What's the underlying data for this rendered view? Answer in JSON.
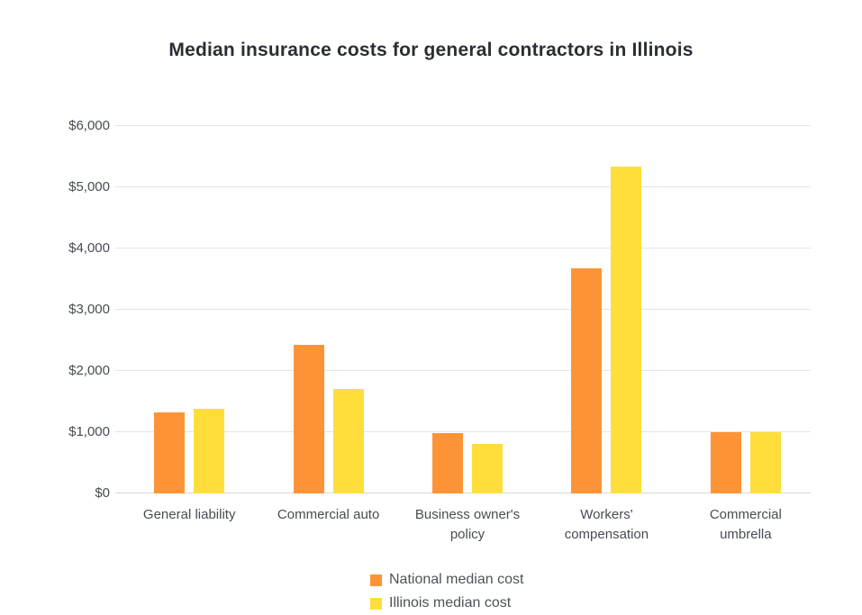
{
  "chart_data": {
    "type": "bar",
    "title": "Median insurance costs for general contractors in Illinois",
    "categories": [
      "General liability",
      "Commercial auto",
      "Business owner's policy",
      "Workers' compensation",
      "Commercial umbrella"
    ],
    "series": [
      {
        "name": "National median cost",
        "color": "#FC9437",
        "values": [
          1320,
          2420,
          990,
          3680,
          1000
        ]
      },
      {
        "name": "Illinois median cost",
        "color": "#FFDE3B",
        "values": [
          1380,
          1700,
          810,
          5340,
          1000
        ]
      }
    ],
    "xlabel": "",
    "ylabel": "",
    "ylim": [
      0,
      6000
    ],
    "ytick_interval": 1000,
    "ytick_labels": [
      "$0",
      "$1,000",
      "$2,000",
      "$3,000",
      "$4,000",
      "$5,000",
      "$6,000"
    ],
    "grid": true,
    "legend_position": "bottom"
  },
  "colors": {
    "title_text": "#2b2e34",
    "axis_text": "#474c54",
    "gridline": "#e4e4e4",
    "baseline": "#d6d6d6"
  }
}
